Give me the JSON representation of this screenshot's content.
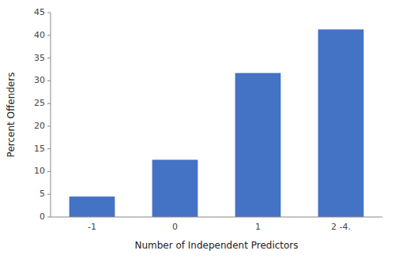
{
  "chart_data": {
    "type": "bar",
    "categories": [
      "-1",
      "0",
      "1",
      "2 -4."
    ],
    "values": [
      4.5,
      12.6,
      31.7,
      41.3
    ],
    "color": "#4472C4",
    "xlabel": "Number of Independent Predictors",
    "ylabel": "Percent Offenders",
    "ylim": [
      0,
      45
    ],
    "yticks": [
      0,
      5,
      10,
      15,
      20,
      25,
      30,
      35,
      40,
      45
    ],
    "grid": false
  }
}
